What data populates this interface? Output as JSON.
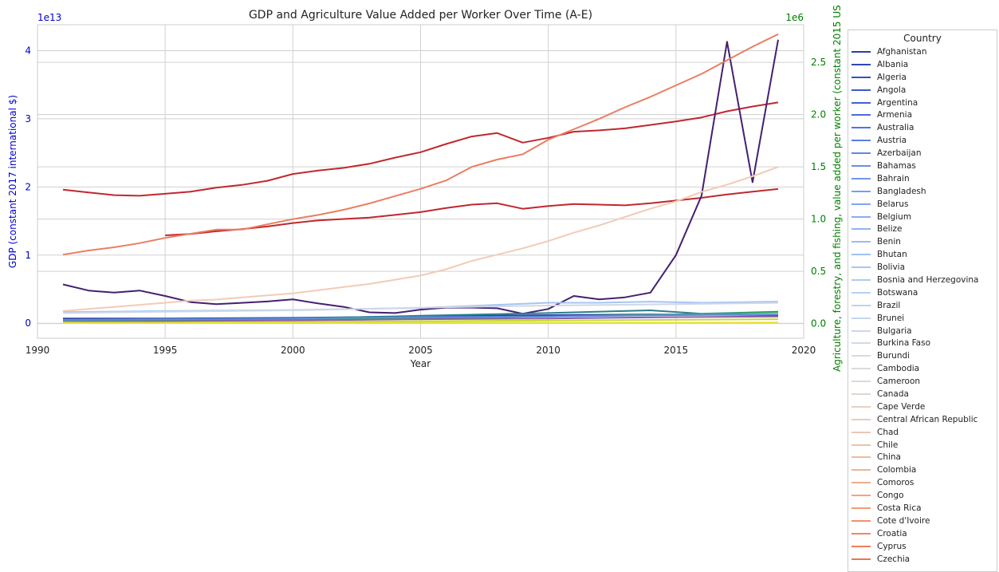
{
  "chart_data": {
    "type": "line",
    "title": "GDP and Agriculture Value Added per Worker Over Time (A-E)",
    "xlabel": "Year",
    "ylabel_left": "GDP (constant 2017 international $)",
    "ylabel_right": "Agriculture, forestry, and fishing, value added per worker (constant 2015 US",
    "left_axis_multiplier": "1e13",
    "right_axis_multiplier": "1e6",
    "xlim": [
      1990,
      2020
    ],
    "ylim_left": [
      -0.22,
      4.38
    ],
    "ylim_right": [
      -0.14,
      2.86
    ],
    "xticks": [
      "1990",
      "1995",
      "2000",
      "2005",
      "2010",
      "2015",
      "2020"
    ],
    "yticks_left": [
      "0",
      "1",
      "2",
      "3",
      "4"
    ],
    "yticks_right": [
      "0.0",
      "0.5",
      "1.0",
      "1.5",
      "2.0",
      "2.5"
    ],
    "left_axis_color": "#0000cc",
    "right_axis_color": "#008000",
    "grid": true,
    "legend_title": "Country",
    "legend_placement": "outside right",
    "legend": [
      {
        "label": "Afghanistan",
        "color": "#2b3fa6"
      },
      {
        "label": "Albania",
        "color": "#2f47b3"
      },
      {
        "label": "Algeria",
        "color": "#3450c0"
      },
      {
        "label": "Angola",
        "color": "#3a5acb"
      },
      {
        "label": "Argentina",
        "color": "#4163d2"
      },
      {
        "label": "Armenia",
        "color": "#486cd8"
      },
      {
        "label": "Australia",
        "color": "#5075de"
      },
      {
        "label": "Austria",
        "color": "#587ee2"
      },
      {
        "label": "Azerbaijan",
        "color": "#6087e6"
      },
      {
        "label": "Bahamas",
        "color": "#688fe9"
      },
      {
        "label": "Bahrain",
        "color": "#7097ec"
      },
      {
        "label": "Bangladesh",
        "color": "#789fee"
      },
      {
        "label": "Belarus",
        "color": "#80a6f0"
      },
      {
        "label": "Belgium",
        "color": "#88adf2"
      },
      {
        "label": "Belize",
        "color": "#90b4f3"
      },
      {
        "label": "Benin",
        "color": "#98baf4"
      },
      {
        "label": "Bhutan",
        "color": "#a0c0f4"
      },
      {
        "label": "Bolivia",
        "color": "#a8c5f4"
      },
      {
        "label": "Bosnia and Herzegovina",
        "color": "#afcaf4"
      },
      {
        "label": "Botswana",
        "color": "#b6cff3"
      },
      {
        "label": "Brazil",
        "color": "#bdd2f1"
      },
      {
        "label": "Brunei",
        "color": "#c4d5ef"
      },
      {
        "label": "Bulgaria",
        "color": "#cad8ec"
      },
      {
        "label": "Burkina Faso",
        "color": "#d0dae8"
      },
      {
        "label": "Burundi",
        "color": "#d5dbe3"
      },
      {
        "label": "Cambodia",
        "color": "#d9dbdd"
      },
      {
        "label": "Cameroon",
        "color": "#ddd9d6"
      },
      {
        "label": "Canada",
        "color": "#e0d6cf"
      },
      {
        "label": "Cape Verde",
        "color": "#e4d2c6"
      },
      {
        "label": "Central African Republic",
        "color": "#e7cdbd"
      },
      {
        "label": "Chad",
        "color": "#eac7b3"
      },
      {
        "label": "Chile",
        "color": "#ecc1a9"
      },
      {
        "label": "China",
        "color": "#eeba9f"
      },
      {
        "label": "Colombia",
        "color": "#f0b395"
      },
      {
        "label": "Comoros",
        "color": "#f1ab8a"
      },
      {
        "label": "Congo",
        "color": "#f2a380"
      },
      {
        "label": "Costa Rica",
        "color": "#f29a76"
      },
      {
        "label": "Cote d'Ivoire",
        "color": "#f2916c"
      },
      {
        "label": "Croatia",
        "color": "#f18862"
      },
      {
        "label": "Cyprus",
        "color": "#ef7f59"
      },
      {
        "label": "Czechia",
        "color": "#ed7550"
      }
    ],
    "series": [
      {
        "axis": "left",
        "color": "#c0282e",
        "x": [
          1991,
          1992,
          1993,
          1994,
          1995,
          1996,
          1997,
          1998,
          1999,
          2000,
          2001,
          2002,
          2003,
          2004,
          2005,
          2006,
          2007,
          2008,
          2009,
          2010,
          2011,
          2012,
          2013,
          2014,
          2015,
          2016,
          2017,
          2018,
          2019
        ],
        "y": [
          1.96,
          1.92,
          1.88,
          1.87,
          1.9,
          1.93,
          1.99,
          2.03,
          2.09,
          2.19,
          2.24,
          2.28,
          2.34,
          2.43,
          2.51,
          2.63,
          2.74,
          2.79,
          2.65,
          2.72,
          2.81,
          2.83,
          2.86,
          2.91,
          2.96,
          3.02,
          3.11,
          3.18,
          3.24
        ]
      },
      {
        "axis": "left",
        "color": "#c0282e",
        "x": [
          1995,
          1996,
          1997,
          1998,
          1999,
          2000,
          2001,
          2002,
          2003,
          2004,
          2005,
          2006,
          2007,
          2008,
          2009,
          2010,
          2011,
          2012,
          2013,
          2014,
          2015,
          2016,
          2017,
          2018,
          2019
        ],
        "y": [
          1.29,
          1.31,
          1.35,
          1.38,
          1.42,
          1.47,
          1.51,
          1.53,
          1.55,
          1.59,
          1.63,
          1.69,
          1.74,
          1.76,
          1.68,
          1.72,
          1.75,
          1.74,
          1.73,
          1.76,
          1.8,
          1.84,
          1.89,
          1.93,
          1.97
        ]
      },
      {
        "axis": "left",
        "color": "#442070",
        "x": [
          1991,
          1992,
          1993,
          1994,
          1995,
          1996,
          1997,
          1998,
          1999,
          2000,
          2001,
          2002,
          2003,
          2004,
          2005,
          2006,
          2007,
          2008,
          2009,
          2010,
          2011,
          2012,
          2013,
          2014,
          2015,
          2016,
          2017,
          2018,
          2019
        ],
        "y": [
          0.57,
          0.48,
          0.45,
          0.48,
          0.4,
          0.31,
          0.28,
          0.3,
          0.32,
          0.35,
          0.29,
          0.24,
          0.16,
          0.15,
          0.2,
          0.23,
          0.23,
          0.22,
          0.14,
          0.21,
          0.4,
          0.35,
          0.38,
          0.45,
          1.0,
          1.87,
          4.13,
          2.07,
          4.16
        ]
      },
      {
        "axis": "right",
        "color": "#ea7e60",
        "x": [
          1991,
          1992,
          1993,
          1994,
          1995,
          1996,
          1997,
          1998,
          1999,
          2000,
          2001,
          2002,
          2003,
          2004,
          2005,
          2006,
          2007,
          2008,
          2009,
          2010,
          2011,
          2012,
          2013,
          2014,
          2015,
          2016,
          2017,
          2018,
          2019
        ],
        "y": [
          0.66,
          0.7,
          0.73,
          0.77,
          0.82,
          0.86,
          0.9,
          0.9,
          0.95,
          1.0,
          1.04,
          1.09,
          1.15,
          1.22,
          1.29,
          1.37,
          1.5,
          1.57,
          1.62,
          1.76,
          1.86,
          1.96,
          2.07,
          2.17,
          2.28,
          2.39,
          2.52,
          2.65,
          2.77
        ]
      },
      {
        "axis": "right",
        "color": "#f2cbb7",
        "x": [
          1991,
          1992,
          1993,
          1994,
          1995,
          1996,
          1997,
          1998,
          1999,
          2000,
          2001,
          2002,
          2003,
          2004,
          2005,
          2006,
          2007,
          2008,
          2009,
          2010,
          2011,
          2012,
          2013,
          2014,
          2015,
          2016,
          2017,
          2018,
          2019
        ],
        "y": [
          0.12,
          0.14,
          0.16,
          0.18,
          0.2,
          0.22,
          0.23,
          0.25,
          0.27,
          0.29,
          0.32,
          0.35,
          0.38,
          0.42,
          0.46,
          0.52,
          0.6,
          0.66,
          0.72,
          0.79,
          0.87,
          0.94,
          1.02,
          1.1,
          1.17,
          1.26,
          1.33,
          1.41,
          1.5
        ]
      },
      {
        "axis": "right",
        "color": "#a7c4f2",
        "x": [
          1991,
          1995,
          2000,
          2005,
          2008,
          2010,
          2012,
          2014,
          2016,
          2019
        ],
        "y": [
          0.11,
          0.12,
          0.13,
          0.15,
          0.18,
          0.2,
          0.2,
          0.21,
          0.2,
          0.21
        ]
      },
      {
        "axis": "left",
        "color": "#cfd8e6",
        "x": [
          1991,
          1995,
          2000,
          2005,
          2010,
          2015,
          2019
        ],
        "y": [
          0.15,
          0.17,
          0.19,
          0.23,
          0.26,
          0.28,
          0.3
        ]
      },
      {
        "axis": "left",
        "color": "#2b3fa6",
        "x": [
          1991,
          1995,
          2000,
          2005,
          2010,
          2014,
          2019
        ],
        "y": [
          0.07,
          0.07,
          0.08,
          0.1,
          0.12,
          0.13,
          0.12
        ]
      },
      {
        "axis": "left",
        "color": "#2a7f8a",
        "x": [
          1991,
          1995,
          2000,
          2005,
          2010,
          2014,
          2016,
          2019
        ],
        "y": [
          0.04,
          0.05,
          0.07,
          0.11,
          0.15,
          0.19,
          0.14,
          0.17
        ]
      },
      {
        "axis": "left",
        "color": "#3aa86a",
        "x": [
          1991,
          1995,
          2000,
          2005,
          2010,
          2015,
          2019
        ],
        "y": [
          0.03,
          0.04,
          0.05,
          0.07,
          0.1,
          0.13,
          0.16
        ]
      },
      {
        "axis": "left",
        "color": "#5b8bd8",
        "x": [
          1991,
          1995,
          2000,
          2005,
          2010,
          2015,
          2019
        ],
        "y": [
          0.05,
          0.06,
          0.07,
          0.09,
          0.1,
          0.12,
          0.13
        ]
      },
      {
        "axis": "left",
        "color": "#8a5fb0",
        "x": [
          1991,
          1995,
          2000,
          2005,
          2010,
          2015,
          2019
        ],
        "y": [
          0.02,
          0.03,
          0.04,
          0.06,
          0.07,
          0.09,
          0.1
        ]
      },
      {
        "axis": "left",
        "color": "#c8d83a",
        "x": [
          1991,
          1995,
          2000,
          2005,
          2010,
          2015,
          2019
        ],
        "y": [
          0.01,
          0.01,
          0.02,
          0.03,
          0.04,
          0.05,
          0.06
        ]
      },
      {
        "axis": "left",
        "color": "#e8e030",
        "x": [
          1991,
          2019
        ],
        "y": [
          0.005,
          0.01
        ]
      }
    ]
  }
}
